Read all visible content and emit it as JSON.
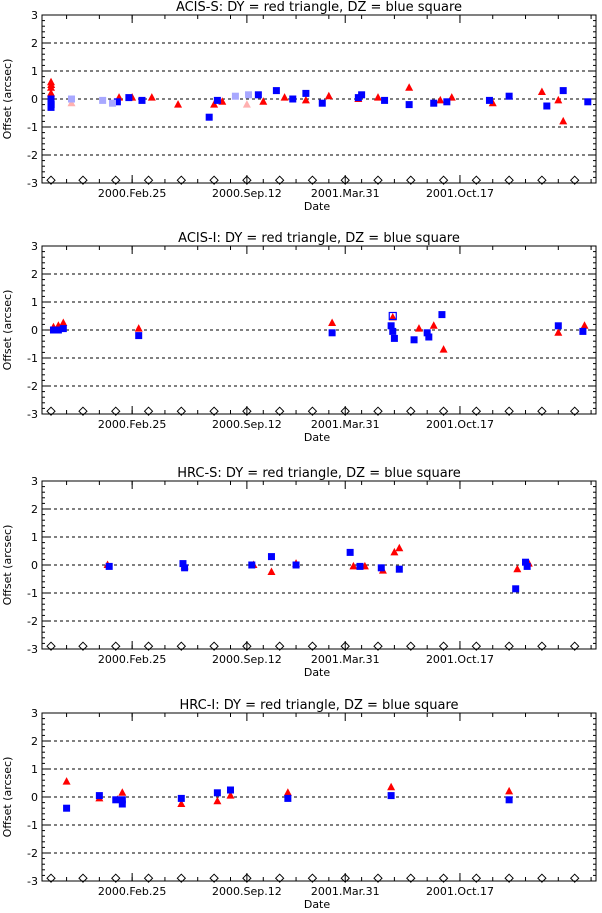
{
  "chart_data": [
    {
      "type": "scatter",
      "title": "ACIS-S: DY = red triangle, DZ = blue square",
      "xlabel": "Date",
      "ylabel": "Offset (arcsec)",
      "ylim": [
        -3,
        3
      ],
      "x_tick_labels": [
        "2000.Feb.25",
        "2000.Sep.12",
        "2001.Mar.31",
        "2001.Oct.17"
      ],
      "y_tick_labels": [
        "-3",
        "-2",
        "-1",
        "0",
        "1",
        "2",
        "3"
      ],
      "grid": "dashed horizontal at integer offsets",
      "series": [
        {
          "name": "DY",
          "marker": "triangle",
          "color": "#ff0000",
          "points": [
            [
              0.05,
              0.6
            ],
            [
              0.05,
              0.4
            ],
            [
              0.05,
              0.2
            ],
            [
              0.06,
              0.5
            ],
            [
              4.2,
              0.05
            ],
            [
              5.0,
              0.05
            ],
            [
              6.2,
              0.05
            ],
            [
              7.8,
              -0.2
            ],
            [
              10.0,
              -0.2
            ],
            [
              10.5,
              -0.1
            ],
            [
              13.0,
              -0.1
            ],
            [
              14.3,
              0.05
            ],
            [
              15.6,
              -0.05
            ],
            [
              17.0,
              0.1
            ],
            [
              18.8,
              0.0
            ],
            [
              20.0,
              0.05
            ],
            [
              21.9,
              0.4
            ],
            [
              23.8,
              -0.05
            ],
            [
              24.5,
              0.05
            ],
            [
              27.0,
              -0.15
            ],
            [
              30.0,
              0.25
            ],
            [
              31.0,
              -0.05
            ],
            [
              31.3,
              -0.8
            ]
          ]
        },
        {
          "name": "DY (faded)",
          "marker": "triangle",
          "color": "#ffb0b0",
          "points": [
            [
              1.3,
              -0.15
            ],
            [
              12.0,
              -0.2
            ]
          ]
        },
        {
          "name": "DZ",
          "marker": "square",
          "color": "#0000ff",
          "points": [
            [
              0.05,
              -0.3
            ],
            [
              0.05,
              -0.1
            ],
            [
              0.05,
              0.0
            ],
            [
              0.06,
              -0.2
            ],
            [
              4.1,
              -0.1
            ],
            [
              4.8,
              0.05
            ],
            [
              5.6,
              -0.05
            ],
            [
              9.7,
              -0.65
            ],
            [
              10.2,
              -0.05
            ],
            [
              12.7,
              0.15
            ],
            [
              13.8,
              0.3
            ],
            [
              14.8,
              0.0
            ],
            [
              15.6,
              0.2
            ],
            [
              16.6,
              -0.15
            ],
            [
              18.8,
              0.05
            ],
            [
              19.0,
              0.15
            ],
            [
              20.4,
              -0.05
            ],
            [
              21.9,
              -0.2
            ],
            [
              23.4,
              -0.15
            ],
            [
              24.2,
              -0.1
            ],
            [
              26.8,
              -0.05
            ],
            [
              28.0,
              0.1
            ],
            [
              30.3,
              -0.25
            ],
            [
              31.3,
              0.3
            ],
            [
              32.8,
              -0.1
            ]
          ]
        },
        {
          "name": "DZ (faded)",
          "marker": "square",
          "color": "#a8a8ff",
          "points": [
            [
              1.3,
              0.0
            ],
            [
              3.2,
              -0.05
            ],
            [
              3.8,
              -0.15
            ],
            [
              11.3,
              0.1
            ],
            [
              12.1,
              0.15
            ]
          ]
        },
        {
          "name": "reference",
          "marker": "open-diamond",
          "color": "#000000",
          "points": [
            [
              0.05,
              -2.9
            ],
            [
              2.0,
              -2.9
            ],
            [
              4.0,
              -2.9
            ],
            [
              6.0,
              -2.9
            ],
            [
              8.0,
              -2.9
            ],
            [
              10.0,
              -2.9
            ],
            [
              12.0,
              -2.9
            ],
            [
              14.0,
              -2.9
            ],
            [
              16.0,
              -2.9
            ],
            [
              18.0,
              -2.9
            ],
            [
              20.0,
              -2.9
            ],
            [
              22.0,
              -2.9
            ],
            [
              24.0,
              -2.9
            ],
            [
              26.0,
              -2.9
            ],
            [
              28.0,
              -2.9
            ],
            [
              30.0,
              -2.9
            ],
            [
              32.0,
              -2.9
            ]
          ]
        }
      ]
    },
    {
      "type": "scatter",
      "title": "ACIS-I: DY = red triangle, DZ = blue square",
      "xlabel": "Date",
      "ylabel": "Offset (arcsec)",
      "ylim": [
        -3,
        3
      ],
      "x_tick_labels": [
        "2000.Feb.25",
        "2000.Sep.12",
        "2001.Mar.31",
        "2001.Oct.17"
      ],
      "y_tick_labels": [
        "-3",
        "-2",
        "-1",
        "0",
        "1",
        "2",
        "3"
      ],
      "grid": "dashed horizontal at integer offsets",
      "series": [
        {
          "name": "DY",
          "marker": "triangle",
          "color": "#ff0000",
          "points": [
            [
              0.2,
              0.1
            ],
            [
              0.5,
              0.15
            ],
            [
              0.8,
              0.25
            ],
            [
              5.4,
              0.05
            ],
            [
              17.2,
              0.25
            ],
            [
              20.9,
              0.45
            ],
            [
              22.5,
              0.05
            ],
            [
              23.4,
              0.15
            ],
            [
              24.0,
              -0.7
            ],
            [
              31.0,
              -0.1
            ],
            [
              32.6,
              0.15
            ]
          ]
        },
        {
          "name": "DZ",
          "marker": "square",
          "color": "#0000ff",
          "points": [
            [
              0.2,
              0.0
            ],
            [
              0.5,
              0.0
            ],
            [
              0.8,
              0.05
            ],
            [
              5.4,
              -0.2
            ],
            [
              17.2,
              -0.1
            ],
            [
              20.8,
              0.15
            ],
            [
              20.9,
              -0.05
            ],
            [
              21.0,
              -0.3
            ],
            [
              22.2,
              -0.35
            ],
            [
              23.0,
              -0.1
            ],
            [
              23.1,
              -0.25
            ],
            [
              23.9,
              0.55
            ],
            [
              31.0,
              0.15
            ],
            [
              32.5,
              -0.05
            ]
          ]
        },
        {
          "name": "DZ (open)",
          "marker": "open-square",
          "color": "#0000ff",
          "points": [
            [
              20.9,
              0.5
            ]
          ]
        },
        {
          "name": "reference",
          "marker": "open-diamond",
          "color": "#000000",
          "points": [
            [
              0.05,
              -2.9
            ],
            [
              2.0,
              -2.9
            ],
            [
              4.0,
              -2.9
            ],
            [
              6.0,
              -2.9
            ],
            [
              8.0,
              -2.9
            ],
            [
              10.0,
              -2.9
            ],
            [
              12.0,
              -2.9
            ],
            [
              14.0,
              -2.9
            ],
            [
              16.0,
              -2.9
            ],
            [
              18.0,
              -2.9
            ],
            [
              20.0,
              -2.9
            ],
            [
              22.0,
              -2.9
            ],
            [
              24.0,
              -2.9
            ],
            [
              26.0,
              -2.9
            ],
            [
              28.0,
              -2.9
            ],
            [
              30.0,
              -2.9
            ],
            [
              32.0,
              -2.9
            ]
          ]
        }
      ]
    },
    {
      "type": "scatter",
      "title": "HRC-S: DY = red triangle, DZ = blue square",
      "xlabel": "Date",
      "ylabel": "Offset (arcsec)",
      "ylim": [
        -3,
        3
      ],
      "x_tick_labels": [
        "2000.Feb.25",
        "2000.Sep.12",
        "2001.Mar.31",
        "2001.Oct.17"
      ],
      "y_tick_labels": [
        "-3",
        "-2",
        "-1",
        "0",
        "1",
        "2",
        "3"
      ],
      "grid": "dashed horizontal at integer offsets",
      "series": [
        {
          "name": "DY",
          "marker": "triangle",
          "color": "#ff0000",
          "points": [
            [
              3.5,
              0.0
            ],
            [
              8.2,
              -0.05
            ],
            [
              12.4,
              0.0
            ],
            [
              13.5,
              -0.25
            ],
            [
              15.0,
              0.05
            ],
            [
              18.5,
              -0.05
            ],
            [
              19.2,
              -0.05
            ],
            [
              20.3,
              -0.2
            ],
            [
              21.0,
              0.45
            ],
            [
              21.3,
              0.6
            ],
            [
              28.5,
              -0.15
            ],
            [
              29.2,
              0.05
            ]
          ]
        },
        {
          "name": "DZ",
          "marker": "square",
          "color": "#0000ff",
          "points": [
            [
              3.6,
              -0.05
            ],
            [
              8.1,
              0.05
            ],
            [
              8.2,
              -0.1
            ],
            [
              12.3,
              0.0
            ],
            [
              13.5,
              0.3
            ],
            [
              15.0,
              0.0
            ],
            [
              18.3,
              0.45
            ],
            [
              18.9,
              -0.05
            ],
            [
              20.2,
              -0.1
            ],
            [
              21.3,
              -0.15
            ],
            [
              28.4,
              -0.85
            ],
            [
              29.0,
              0.1
            ],
            [
              29.1,
              -0.05
            ]
          ]
        },
        {
          "name": "reference",
          "marker": "open-diamond",
          "color": "#000000",
          "points": [
            [
              0.05,
              -2.9
            ],
            [
              2.0,
              -2.9
            ],
            [
              4.0,
              -2.9
            ],
            [
              6.0,
              -2.9
            ],
            [
              8.0,
              -2.9
            ],
            [
              10.0,
              -2.9
            ],
            [
              12.0,
              -2.9
            ],
            [
              14.0,
              -2.9
            ],
            [
              16.0,
              -2.9
            ],
            [
              18.0,
              -2.9
            ],
            [
              20.0,
              -2.9
            ],
            [
              22.0,
              -2.9
            ],
            [
              24.0,
              -2.9
            ],
            [
              26.0,
              -2.9
            ],
            [
              28.0,
              -2.9
            ],
            [
              30.0,
              -2.9
            ],
            [
              32.0,
              -2.9
            ]
          ]
        }
      ]
    },
    {
      "type": "scatter",
      "title": "HRC-I: DY = red triangle, DZ = blue square",
      "xlabel": "Date",
      "ylabel": "Offset (arcsec)",
      "ylim": [
        -3,
        3
      ],
      "x_tick_labels": [
        "2000.Feb.25",
        "2000.Sep.12",
        "2001.Mar.31",
        "2001.Oct.17"
      ],
      "y_tick_labels": [
        "-3",
        "-2",
        "-1",
        "0",
        "1",
        "2",
        "3"
      ],
      "grid": "dashed horizontal at integer offsets",
      "series": [
        {
          "name": "DY",
          "marker": "triangle",
          "color": "#ff0000",
          "points": [
            [
              1.0,
              0.55
            ],
            [
              3.0,
              -0.05
            ],
            [
              4.1,
              -0.1
            ],
            [
              4.4,
              0.15
            ],
            [
              8.0,
              -0.25
            ],
            [
              10.2,
              -0.15
            ],
            [
              11.0,
              0.05
            ],
            [
              14.5,
              0.15
            ],
            [
              20.8,
              0.35
            ],
            [
              28.0,
              0.2
            ]
          ]
        },
        {
          "name": "DZ",
          "marker": "square",
          "color": "#0000ff",
          "points": [
            [
              1.0,
              -0.4
            ],
            [
              3.0,
              0.05
            ],
            [
              4.0,
              -0.1
            ],
            [
              4.4,
              -0.1
            ],
            [
              4.4,
              -0.25
            ],
            [
              8.0,
              -0.05
            ],
            [
              10.2,
              0.15
            ],
            [
              11.0,
              0.25
            ],
            [
              14.5,
              -0.05
            ],
            [
              20.8,
              0.05
            ],
            [
              28.0,
              -0.1
            ]
          ]
        },
        {
          "name": "reference",
          "marker": "open-diamond",
          "color": "#000000",
          "points": [
            [
              0.05,
              -2.9
            ],
            [
              2.0,
              -2.9
            ],
            [
              4.0,
              -2.9
            ],
            [
              6.0,
              -2.9
            ],
            [
              8.0,
              -2.9
            ],
            [
              10.0,
              -2.9
            ],
            [
              12.0,
              -2.9
            ],
            [
              14.0,
              -2.9
            ],
            [
              16.0,
              -2.9
            ],
            [
              18.0,
              -2.9
            ],
            [
              20.0,
              -2.9
            ],
            [
              22.0,
              -2.9
            ],
            [
              24.0,
              -2.9
            ],
            [
              26.0,
              -2.9
            ],
            [
              28.0,
              -2.9
            ],
            [
              30.0,
              -2.9
            ],
            [
              32.0,
              -2.9
            ]
          ]
        }
      ]
    }
  ]
}
